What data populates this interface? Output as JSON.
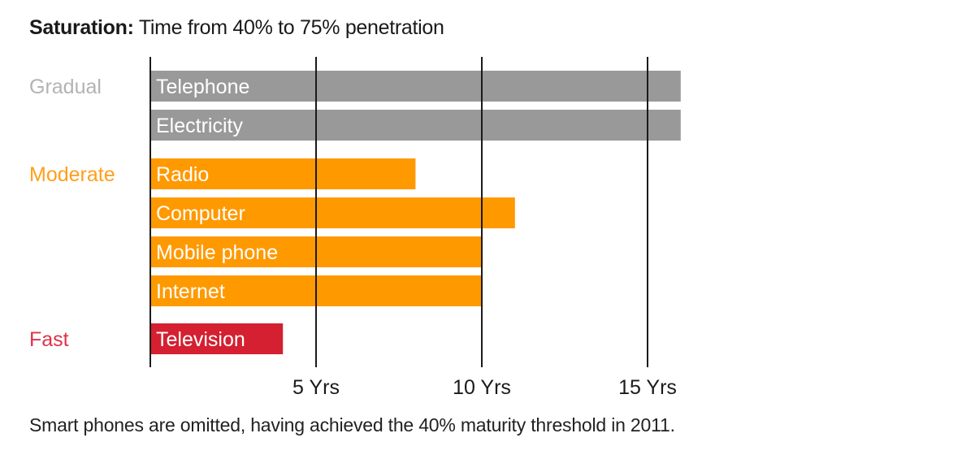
{
  "chart_title": {
    "bold": "Saturation:",
    "rest": " Time from 40% to 75% penetration"
  },
  "footnote": "Smart phones are omitted, having achieved the 40% maturity threshold in 2011.",
  "colors": {
    "gradual": "#999999",
    "moderate": "#ff9900",
    "fast": "#d42030",
    "gradual_label": "#b3b3b3",
    "moderate_label": "#ff9f1a",
    "fast_label": "#e0314a",
    "grid": "#1a1a1a",
    "bar_text": "#ffffff",
    "tick_text": "#1a1a1a"
  },
  "chart_data": {
    "type": "bar",
    "orientation": "horizontal",
    "title": "Saturation: Time from 40% to 75% penetration",
    "xlabel": "",
    "ylabel": "",
    "xlim": [
      0,
      20
    ],
    "grid": true,
    "x_ticks": [
      {
        "value": 5,
        "label": "5 Yrs"
      },
      {
        "value": 10,
        "label": "10 Yrs"
      },
      {
        "value": 15,
        "label": "15 Yrs"
      }
    ],
    "groups": [
      {
        "name": "Gradual",
        "color_key": "gradual",
        "items": [
          {
            "category": "Telephone",
            "value": 16
          },
          {
            "category": "Electricity",
            "value": 16
          }
        ]
      },
      {
        "name": "Moderate",
        "color_key": "moderate",
        "items": [
          {
            "category": "Radio",
            "value": 8
          },
          {
            "category": "Computer",
            "value": 11
          },
          {
            "category": "Mobile phone",
            "value": 10
          },
          {
            "category": "Internet",
            "value": 10
          }
        ]
      },
      {
        "name": "Fast",
        "color_key": "fast",
        "items": [
          {
            "category": "Television",
            "value": 4
          }
        ]
      }
    ]
  }
}
